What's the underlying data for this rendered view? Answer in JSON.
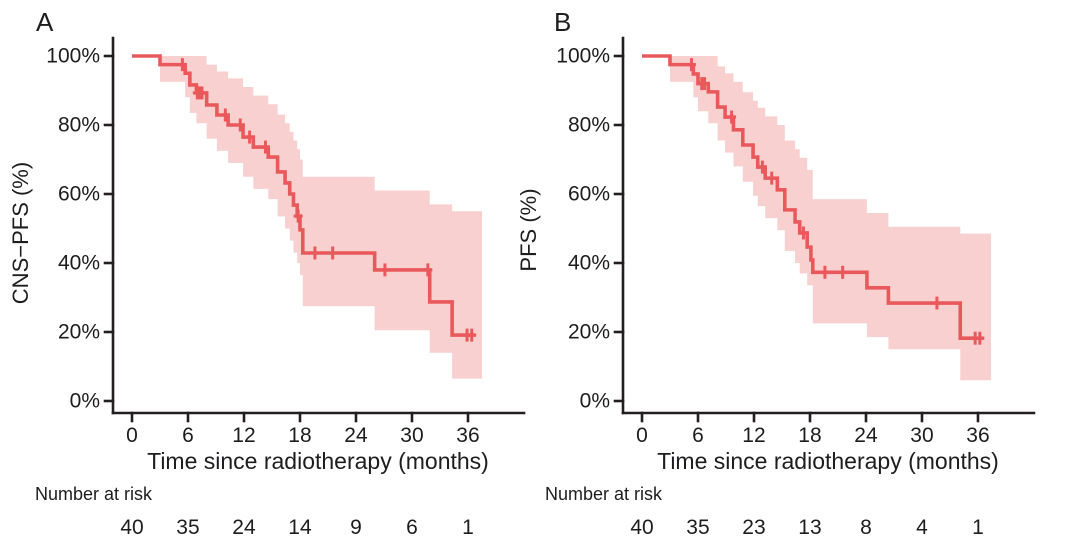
{
  "figure": {
    "background": "#ffffff",
    "curve_color": "#e9595b",
    "band_color": "#f9d0d0",
    "axis_color": "#231f20",
    "text_color": "#1d1d1f"
  },
  "chart_data": [
    {
      "type": "line",
      "subtype": "kaplan-meier-step",
      "panel_label": "A",
      "ylabel": "CNS−PFS (%)",
      "xlabel": "Time since radiotherapy (months)",
      "risk_label": "Number at risk",
      "xlim": [
        0,
        42
      ],
      "ylim": [
        0,
        100
      ],
      "grid": false,
      "xticks": [
        0,
        6,
        12,
        18,
        24,
        30,
        36
      ],
      "ytick_values": [
        0,
        20,
        40,
        60,
        80,
        100
      ],
      "ytick_labels": [
        "0%",
        "20%",
        "40%",
        "60%",
        "80%",
        "100%"
      ],
      "risk_times": [
        0,
        6,
        12,
        18,
        24,
        30,
        36
      ],
      "risk_counts": [
        40,
        35,
        24,
        14,
        9,
        6,
        1
      ],
      "curve_start": [
        0,
        100
      ],
      "curve_steps": [
        [
          3,
          97.5
        ],
        [
          5.7,
          95
        ],
        [
          6.2,
          91.6
        ],
        [
          6.9,
          89.3
        ],
        [
          8,
          85.8
        ],
        [
          9.1,
          82.9
        ],
        [
          10.3,
          80
        ],
        [
          11.9,
          76.5
        ],
        [
          13,
          73.6
        ],
        [
          14.6,
          70.7
        ],
        [
          15.6,
          66.4
        ],
        [
          16.4,
          63.2
        ],
        [
          16.9,
          60
        ],
        [
          17.3,
          56.8
        ],
        [
          17.7,
          53.6
        ],
        [
          18,
          49.6
        ],
        [
          18.3,
          42.9
        ],
        [
          26,
          38
        ],
        [
          31.9,
          28.7
        ],
        [
          34.3,
          19.1
        ]
      ],
      "curve_end_t": 36.8,
      "censor_marks": [
        [
          5.4,
          97.5
        ],
        [
          7,
          89.3
        ],
        [
          7.25,
          89.3
        ],
        [
          7.5,
          89.3
        ],
        [
          10,
          82.9
        ],
        [
          11.6,
          80
        ],
        [
          12.6,
          76.5
        ],
        [
          14.3,
          73.6
        ],
        [
          17.8,
          53.6
        ],
        [
          19.6,
          42.9
        ],
        [
          21.5,
          42.9
        ],
        [
          27.1,
          38
        ],
        [
          31.7,
          38
        ],
        [
          35.9,
          19.1
        ],
        [
          36.4,
          19.1
        ]
      ],
      "ci_band": [
        [
          3,
          92.5,
          100
        ],
        [
          5.7,
          88,
          100
        ],
        [
          6.2,
          83.5,
          100
        ],
        [
          6.9,
          80.5,
          100
        ],
        [
          8,
          76,
          97.5
        ],
        [
          9.1,
          72.5,
          95.5
        ],
        [
          10.3,
          69,
          93.5
        ],
        [
          11.9,
          65,
          91
        ],
        [
          13,
          61.5,
          88.5
        ],
        [
          14.6,
          58.5,
          86
        ],
        [
          15.6,
          53.5,
          83
        ],
        [
          16.4,
          50,
          80.5
        ],
        [
          16.9,
          46.5,
          78
        ],
        [
          17.3,
          43,
          75.5
        ],
        [
          17.7,
          40,
          73
        ],
        [
          18,
          36.5,
          70
        ],
        [
          18.3,
          27.5,
          65
        ],
        [
          26,
          20.5,
          61
        ],
        [
          31.9,
          14,
          57
        ],
        [
          34.3,
          6.5,
          55
        ]
      ],
      "ci_band_end_t": 37.5
    },
    {
      "type": "line",
      "subtype": "kaplan-meier-step",
      "panel_label": "B",
      "ylabel": "PFS (%)",
      "xlabel": "Time since radiotherapy (months)",
      "risk_label": "Number at risk",
      "xlim": [
        0,
        42
      ],
      "ylim": [
        0,
        100
      ],
      "grid": false,
      "xticks": [
        0,
        6,
        12,
        18,
        24,
        30,
        36
      ],
      "ytick_values": [
        0,
        20,
        40,
        60,
        80,
        100
      ],
      "ytick_labels": [
        "0%",
        "20%",
        "40%",
        "60%",
        "80%",
        "100%"
      ],
      "risk_times": [
        0,
        6,
        12,
        18,
        24,
        30,
        36
      ],
      "risk_counts": [
        40,
        35,
        23,
        13,
        8,
        4,
        1
      ],
      "curve_start": [
        0,
        100
      ],
      "curve_steps": [
        [
          3,
          97.5
        ],
        [
          5.5,
          94.8
        ],
        [
          6,
          92
        ],
        [
          7.1,
          89.6
        ],
        [
          8.1,
          85.2
        ],
        [
          8.9,
          82.3
        ],
        [
          9.8,
          78.6
        ],
        [
          10.8,
          74.2
        ],
        [
          11.9,
          70.7
        ],
        [
          12.4,
          67.8
        ],
        [
          13.2,
          64.6
        ],
        [
          14.5,
          61.2
        ],
        [
          15.3,
          55.4
        ],
        [
          16.4,
          51.9
        ],
        [
          16.9,
          48.7
        ],
        [
          17.7,
          44.6
        ],
        [
          18.1,
          40.9
        ],
        [
          18.3,
          37.3
        ],
        [
          24.1,
          32.8
        ],
        [
          26.4,
          28.4
        ],
        [
          34.1,
          18.2
        ]
      ],
      "curve_end_t": 36.6,
      "censor_marks": [
        [
          5.3,
          97.5
        ],
        [
          6.4,
          92
        ],
        [
          6.7,
          92
        ],
        [
          9.6,
          82.3
        ],
        [
          12.9,
          67.8
        ],
        [
          13.9,
          64.6
        ],
        [
          17.3,
          48.7
        ],
        [
          19.6,
          37.3
        ],
        [
          21.5,
          37.3
        ],
        [
          31.6,
          28.4
        ],
        [
          35.7,
          18.2
        ],
        [
          36.2,
          18.2
        ]
      ],
      "ci_band": [
        [
          3,
          92.5,
          100
        ],
        [
          5.5,
          88,
          100
        ],
        [
          6,
          84,
          100
        ],
        [
          7.1,
          80.5,
          100
        ],
        [
          8.1,
          75.5,
          97
        ],
        [
          8.9,
          72,
          95
        ],
        [
          9.8,
          68,
          92.5
        ],
        [
          10.8,
          63.5,
          89.5
        ],
        [
          11.9,
          59.5,
          87
        ],
        [
          12.4,
          56.5,
          85
        ],
        [
          13.2,
          53,
          82.5
        ],
        [
          14.5,
          49.5,
          80
        ],
        [
          15.3,
          43.5,
          75.5
        ],
        [
          16.4,
          40,
          73
        ],
        [
          16.9,
          37,
          70.5
        ],
        [
          17.7,
          33.5,
          67
        ],
        [
          18.3,
          22.5,
          58.5
        ],
        [
          24.1,
          18.5,
          54.5
        ],
        [
          26.4,
          15,
          50.5
        ],
        [
          34.1,
          6,
          48.5
        ]
      ],
      "ci_band_end_t": 37.4
    }
  ]
}
